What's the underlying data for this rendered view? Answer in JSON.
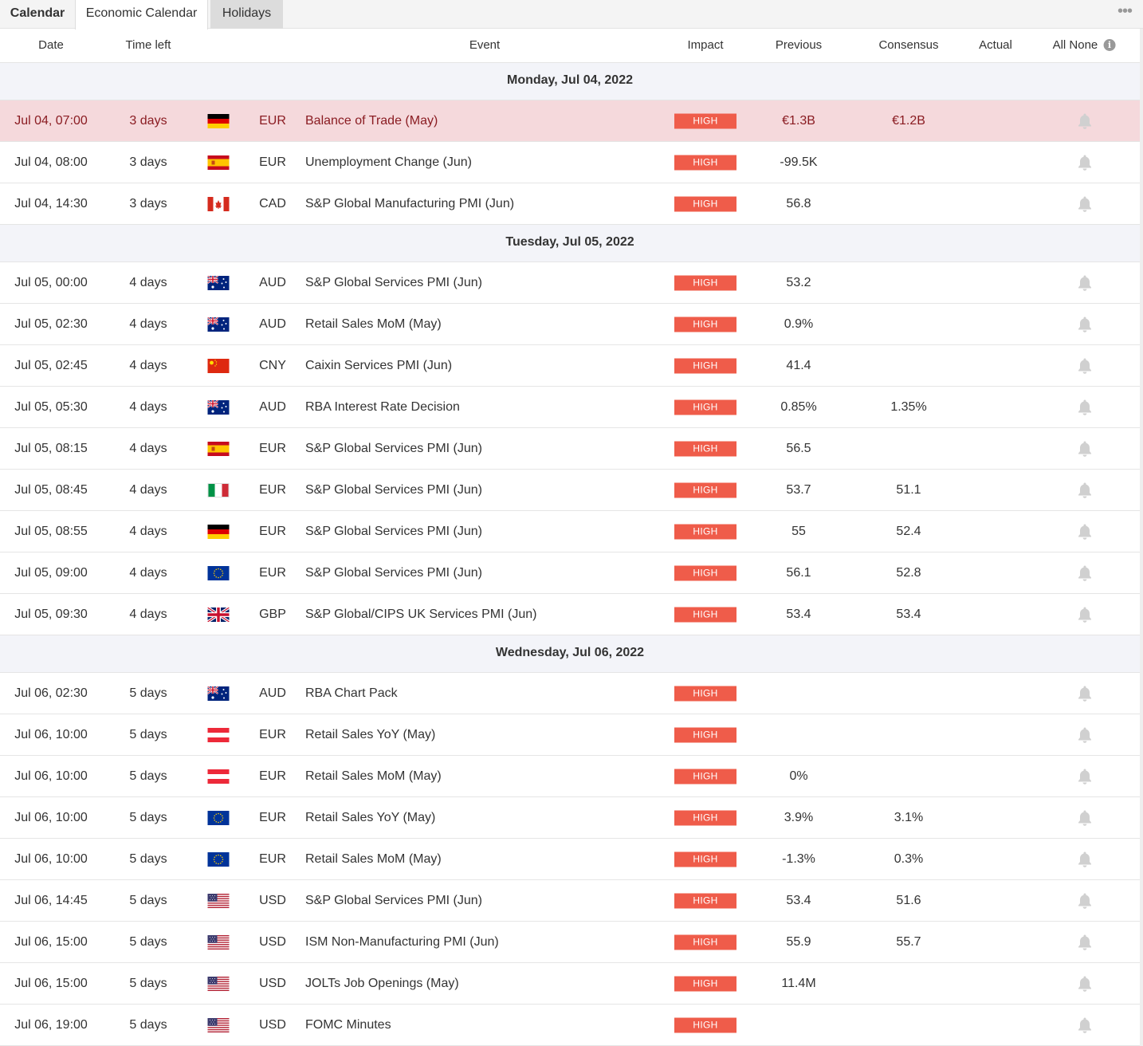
{
  "tabs": {
    "calendar": "Calendar",
    "economic": "Economic Calendar",
    "holidays": "Holidays"
  },
  "more_label": "•••",
  "columns": {
    "date": "Date",
    "time_left": "Time left",
    "event": "Event",
    "impact": "Impact",
    "previous": "Previous",
    "consensus": "Consensus",
    "actual": "Actual",
    "all": "All",
    "none": "None",
    "info": "i"
  },
  "colors": {
    "high": "#ef5c4a",
    "highlight_row": "#f5d9dc",
    "day_header": "#f3f4f9"
  },
  "days": [
    {
      "label": "Monday, Jul 04, 2022",
      "events": [
        {
          "date": "Jul 04, 07:00",
          "time_left": "3 days",
          "flag": "de",
          "currency": "EUR",
          "event": "Balance of Trade (May)",
          "impact": "HIGH",
          "previous": "€1.3B",
          "consensus": "€1.2B",
          "actual": "",
          "highlight": true
        },
        {
          "date": "Jul 04, 08:00",
          "time_left": "3 days",
          "flag": "es",
          "currency": "EUR",
          "event": "Unemployment Change (Jun)",
          "impact": "HIGH",
          "previous": "-99.5K",
          "consensus": "",
          "actual": ""
        },
        {
          "date": "Jul 04, 14:30",
          "time_left": "3 days",
          "flag": "ca",
          "currency": "CAD",
          "event": "S&P Global Manufacturing PMI (Jun)",
          "impact": "HIGH",
          "previous": "56.8",
          "consensus": "",
          "actual": ""
        }
      ]
    },
    {
      "label": "Tuesday, Jul 05, 2022",
      "events": [
        {
          "date": "Jul 05, 00:00",
          "time_left": "4 days",
          "flag": "au",
          "currency": "AUD",
          "event": "S&P Global Services PMI (Jun)",
          "impact": "HIGH",
          "previous": "53.2",
          "consensus": "",
          "actual": ""
        },
        {
          "date": "Jul 05, 02:30",
          "time_left": "4 days",
          "flag": "au",
          "currency": "AUD",
          "event": "Retail Sales MoM (May)",
          "impact": "HIGH",
          "previous": "0.9%",
          "consensus": "",
          "actual": ""
        },
        {
          "date": "Jul 05, 02:45",
          "time_left": "4 days",
          "flag": "cn",
          "currency": "CNY",
          "event": "Caixin Services PMI (Jun)",
          "impact": "HIGH",
          "previous": "41.4",
          "consensus": "",
          "actual": ""
        },
        {
          "date": "Jul 05, 05:30",
          "time_left": "4 days",
          "flag": "au",
          "currency": "AUD",
          "event": "RBA Interest Rate Decision",
          "impact": "HIGH",
          "previous": "0.85%",
          "consensus": "1.35%",
          "actual": ""
        },
        {
          "date": "Jul 05, 08:15",
          "time_left": "4 days",
          "flag": "es",
          "currency": "EUR",
          "event": "S&P Global Services PMI (Jun)",
          "impact": "HIGH",
          "previous": "56.5",
          "consensus": "",
          "actual": ""
        },
        {
          "date": "Jul 05, 08:45",
          "time_left": "4 days",
          "flag": "it",
          "currency": "EUR",
          "event": "S&P Global Services PMI (Jun)",
          "impact": "HIGH",
          "previous": "53.7",
          "consensus": "51.1",
          "actual": ""
        },
        {
          "date": "Jul 05, 08:55",
          "time_left": "4 days",
          "flag": "de",
          "currency": "EUR",
          "event": "S&P Global Services PMI (Jun)",
          "impact": "HIGH",
          "previous": "55",
          "consensus": "52.4",
          "actual": ""
        },
        {
          "date": "Jul 05, 09:00",
          "time_left": "4 days",
          "flag": "eu",
          "currency": "EUR",
          "event": "S&P Global Services PMI (Jun)",
          "impact": "HIGH",
          "previous": "56.1",
          "consensus": "52.8",
          "actual": ""
        },
        {
          "date": "Jul 05, 09:30",
          "time_left": "4 days",
          "flag": "gb",
          "currency": "GBP",
          "event": "S&P Global/CIPS UK Services PMI (Jun)",
          "impact": "HIGH",
          "previous": "53.4",
          "consensus": "53.4",
          "actual": ""
        }
      ]
    },
    {
      "label": "Wednesday, Jul 06, 2022",
      "events": [
        {
          "date": "Jul 06, 02:30",
          "time_left": "5 days",
          "flag": "au",
          "currency": "AUD",
          "event": "RBA Chart Pack",
          "impact": "HIGH",
          "previous": "",
          "consensus": "",
          "actual": ""
        },
        {
          "date": "Jul 06, 10:00",
          "time_left": "5 days",
          "flag": "at",
          "currency": "EUR",
          "event": "Retail Sales YoY (May)",
          "impact": "HIGH",
          "previous": "",
          "consensus": "",
          "actual": ""
        },
        {
          "date": "Jul 06, 10:00",
          "time_left": "5 days",
          "flag": "at",
          "currency": "EUR",
          "event": "Retail Sales MoM (May)",
          "impact": "HIGH",
          "previous": "0%",
          "consensus": "",
          "actual": ""
        },
        {
          "date": "Jul 06, 10:00",
          "time_left": "5 days",
          "flag": "eu",
          "currency": "EUR",
          "event": "Retail Sales YoY (May)",
          "impact": "HIGH",
          "previous": "3.9%",
          "consensus": "3.1%",
          "actual": ""
        },
        {
          "date": "Jul 06, 10:00",
          "time_left": "5 days",
          "flag": "eu",
          "currency": "EUR",
          "event": "Retail Sales MoM (May)",
          "impact": "HIGH",
          "previous": "-1.3%",
          "consensus": "0.3%",
          "actual": ""
        },
        {
          "date": "Jul 06, 14:45",
          "time_left": "5 days",
          "flag": "us",
          "currency": "USD",
          "event": "S&P Global Services PMI (Jun)",
          "impact": "HIGH",
          "previous": "53.4",
          "consensus": "51.6",
          "actual": ""
        },
        {
          "date": "Jul 06, 15:00",
          "time_left": "5 days",
          "flag": "us",
          "currency": "USD",
          "event": "ISM Non-Manufacturing PMI (Jun)",
          "impact": "HIGH",
          "previous": "55.9",
          "consensus": "55.7",
          "actual": ""
        },
        {
          "date": "Jul 06, 15:00",
          "time_left": "5 days",
          "flag": "us",
          "currency": "USD",
          "event": "JOLTs Job Openings (May)",
          "impact": "HIGH",
          "previous": "11.4M",
          "consensus": "",
          "actual": ""
        },
        {
          "date": "Jul 06, 19:00",
          "time_left": "5 days",
          "flag": "us",
          "currency": "USD",
          "event": "FOMC Minutes",
          "impact": "HIGH",
          "previous": "",
          "consensus": "",
          "actual": ""
        }
      ]
    }
  ]
}
